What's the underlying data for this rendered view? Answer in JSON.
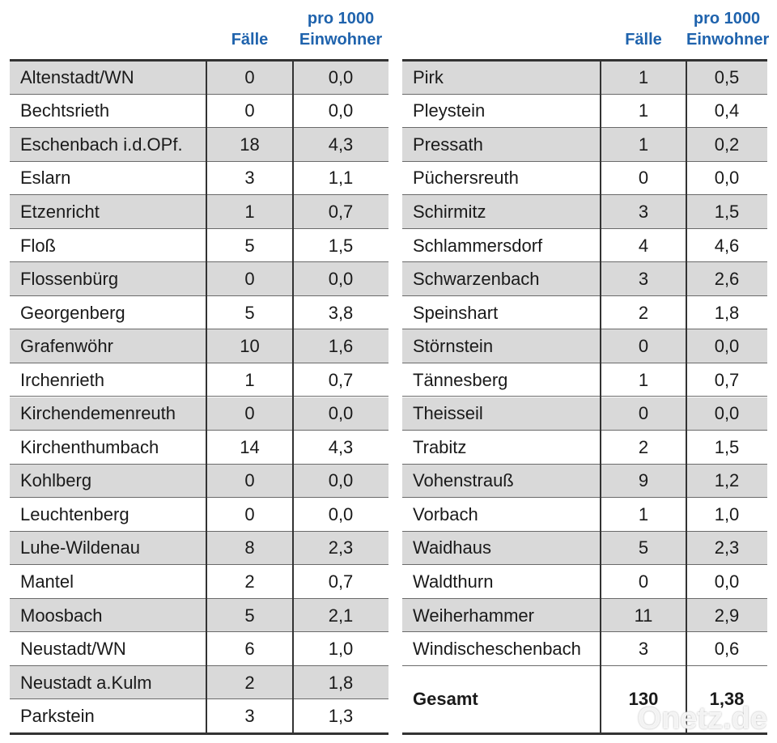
{
  "header": {
    "cases": "Fälle",
    "rate": [
      "pro 1000",
      "Einwohner"
    ]
  },
  "left": {
    "rows": [
      [
        "Altenstadt/WN",
        "0",
        "0,0"
      ],
      [
        "Bechtsrieth",
        "0",
        "0,0"
      ],
      [
        "Eschenbach i.d.OPf.",
        "18",
        "4,3"
      ],
      [
        "Eslarn",
        "3",
        "1,1"
      ],
      [
        "Etzenricht",
        "1",
        "0,7"
      ],
      [
        "Floß",
        "5",
        "1,5"
      ],
      [
        "Flossenbürg",
        "0",
        "0,0"
      ],
      [
        "Georgenberg",
        "5",
        "3,8"
      ],
      [
        "Grafenwöhr",
        "10",
        "1,6"
      ],
      [
        "Irchenrieth",
        "1",
        "0,7"
      ],
      [
        "Kirchendemenreuth",
        "0",
        "0,0"
      ],
      [
        "Kirchenthumbach",
        "14",
        "4,3"
      ],
      [
        "Kohlberg",
        "0",
        "0,0"
      ],
      [
        "Leuchtenberg",
        "0",
        "0,0"
      ],
      [
        "Luhe-Wildenau",
        "8",
        "2,3"
      ],
      [
        "Mantel",
        "2",
        "0,7"
      ],
      [
        "Moosbach",
        "5",
        "2,1"
      ],
      [
        "Neustadt/WN",
        "6",
        "1,0"
      ],
      [
        "Neustadt a.Kulm",
        "2",
        "1,8"
      ],
      [
        "Parkstein",
        "3",
        "1,3"
      ]
    ]
  },
  "right": {
    "rows": [
      [
        "Pirk",
        "1",
        "0,5"
      ],
      [
        "Pleystein",
        "1",
        "0,4"
      ],
      [
        "Pressath",
        "1",
        "0,2"
      ],
      [
        "Püchersreuth",
        "0",
        "0,0"
      ],
      [
        "Schirmitz",
        "3",
        "1,5"
      ],
      [
        "Schlammersdorf",
        "4",
        "4,6"
      ],
      [
        "Schwarzenbach",
        "3",
        "2,6"
      ],
      [
        "Speinshart",
        "2",
        "1,8"
      ],
      [
        "Störnstein",
        "0",
        "0,0"
      ],
      [
        "Tännesberg",
        "1",
        "0,7"
      ],
      [
        "Theisseil",
        "0",
        "0,0"
      ],
      [
        "Trabitz",
        "2",
        "1,5"
      ],
      [
        "Vohenstrauß",
        "9",
        "1,2"
      ],
      [
        "Vorbach",
        "1",
        "1,0"
      ],
      [
        "Waidhaus",
        "5",
        "2,3"
      ],
      [
        "Waldthurn",
        "0",
        "0,0"
      ],
      [
        "Weiherhammer",
        "11",
        "2,9"
      ],
      [
        "Windischeschenbach",
        "3",
        "0,6"
      ]
    ],
    "total": [
      "Gesamt",
      "130",
      "1,38"
    ]
  },
  "watermark": "Onetz.de"
}
